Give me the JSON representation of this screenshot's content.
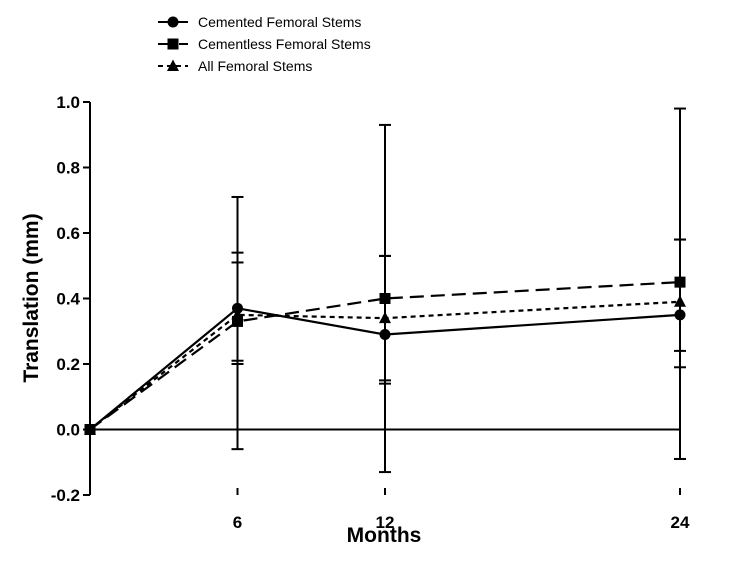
{
  "chart_data": {
    "type": "line",
    "xlabel": "Months",
    "ylabel": "Translation (mm)",
    "x": [
      0,
      6,
      12,
      24
    ],
    "x_tick_labels": [
      "6",
      "12",
      "24"
    ],
    "x_tick_values": [
      6,
      12,
      24
    ],
    "xlim": [
      0,
      24
    ],
    "ylim": [
      -0.2,
      1.0
    ],
    "y_tick_labels": [
      "-0.2",
      "0.0",
      "0.2",
      "0.4",
      "0.6",
      "0.8",
      "1.0"
    ],
    "y_tick_values": [
      -0.2,
      0.0,
      0.2,
      0.4,
      0.6,
      0.8,
      1.0
    ],
    "grid": false,
    "legend_position": "top-left",
    "zero_line": true,
    "series": [
      {
        "name": "Cemented Femoral Stems",
        "marker": "circle",
        "line_style": "solid",
        "values": [
          0.0,
          0.37,
          0.29,
          0.35
        ],
        "error_low": [
          0.0,
          -0.06,
          -0.13,
          -0.09
        ],
        "error_high": [
          0.0,
          0.71,
          0.93,
          0.98
        ]
      },
      {
        "name": "Cementless Femoral Stems",
        "marker": "square",
        "line_style": "dashed",
        "values": [
          0.0,
          0.33,
          0.4,
          0.45
        ],
        "error_low": [
          0.0,
          0.2,
          0.14,
          0.24
        ],
        "error_high": [
          0.0,
          0.54,
          0.53,
          0.58
        ]
      },
      {
        "name": "All Femoral Stems",
        "marker": "triangle",
        "line_style": "dotted",
        "values": [
          0.0,
          0.35,
          0.34,
          0.39
        ],
        "error_low": [
          0.0,
          0.21,
          0.15,
          0.19
        ],
        "error_high": [
          0.0,
          0.51,
          0.53,
          0.58
        ]
      }
    ]
  }
}
